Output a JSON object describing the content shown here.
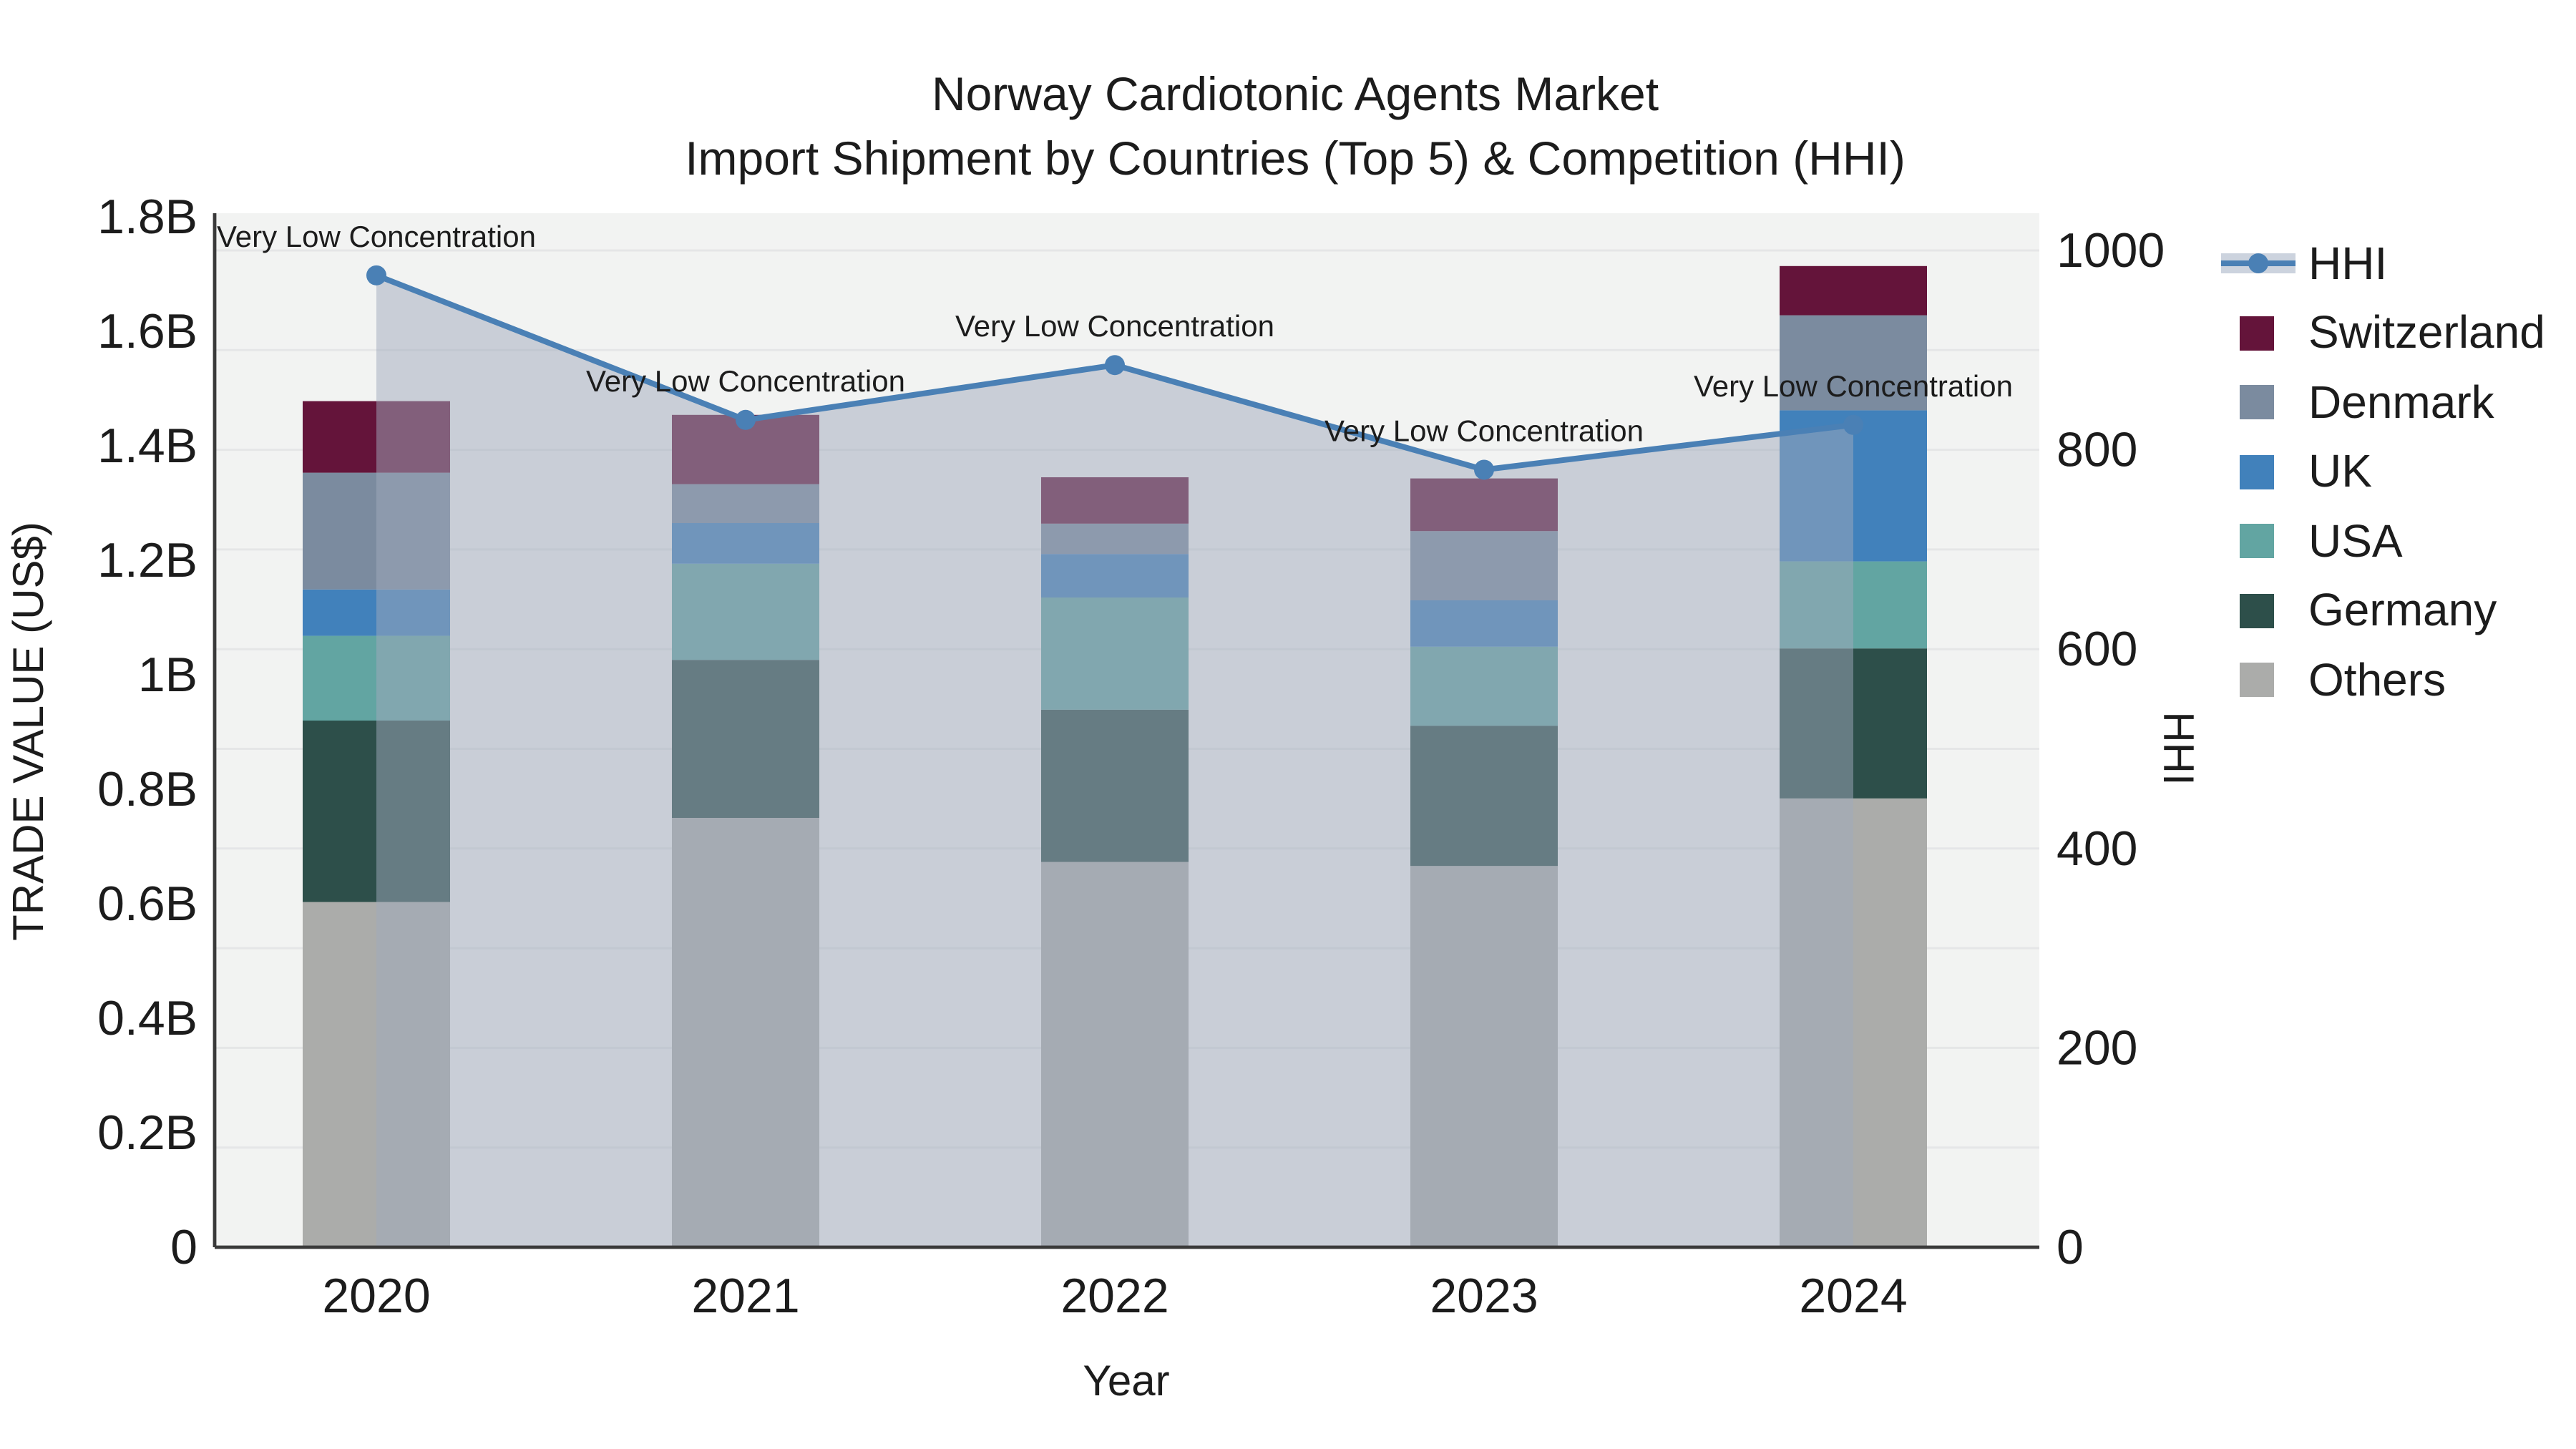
{
  "title": {
    "line1": "Norway Cardiotonic Agents Market",
    "line2": "Import Shipment by Countries (Top 5) & Competition (HHI)"
  },
  "chart_data": {
    "type": "bar+line",
    "title": "Norway Cardiotonic Agents Market — Import Shipment by Countries (Top 5) & Competition (HHI)",
    "categories": [
      "2020",
      "2021",
      "2022",
      "2023",
      "2024"
    ],
    "xlabel": "Year",
    "unit": "USD billions",
    "stack_note": "series listed bottom-to-top of stack",
    "series": [
      {
        "name": "Others",
        "color": "#abacaa",
        "values": [
          0.603,
          0.75,
          0.673,
          0.666,
          0.784
        ]
      },
      {
        "name": "Germany",
        "color": "#2d4f4a",
        "values": [
          0.317,
          0.276,
          0.266,
          0.245,
          0.262
        ]
      },
      {
        "name": "USA",
        "color": "#62a5a2",
        "values": [
          0.148,
          0.168,
          0.196,
          0.138,
          0.152
        ]
      },
      {
        "name": "UK",
        "color": "#4181bb",
        "values": [
          0.081,
          0.071,
          0.076,
          0.081,
          0.264
        ]
      },
      {
        "name": "Denmark",
        "color": "#7b8b9f",
        "values": [
          0.204,
          0.068,
          0.053,
          0.121,
          0.166
        ]
      },
      {
        "name": "Switzerland",
        "color": "#64143a",
        "values": [
          0.125,
          0.121,
          0.081,
          0.092,
          0.086
        ]
      }
    ],
    "totals": [
      1.478,
      1.454,
      1.345,
      1.343,
      1.714
    ],
    "line_series": {
      "name": "HHI",
      "color": "#4a80b5",
      "area_fill": "rgba(160,169,188,0.5)",
      "values": [
        975,
        830,
        885,
        780,
        825
      ]
    },
    "annotation_text": "Very Low Concentration",
    "annotations_per_point": [
      true,
      true,
      true,
      true,
      true
    ],
    "y_left": {
      "title": "TRADE VALUE (US$)",
      "range": [
        0,
        1.8
      ],
      "ticks": [
        [
          0,
          "0"
        ],
        [
          0.2,
          "0.2B"
        ],
        [
          0.4,
          "0.4B"
        ],
        [
          0.6,
          "0.6B"
        ],
        [
          0.8,
          "0.8B"
        ],
        [
          1,
          "1B"
        ],
        [
          1.2,
          "1.2B"
        ],
        [
          1.4,
          "1.4B"
        ],
        [
          1.6,
          "1.6B"
        ],
        [
          1.8,
          "1.8B"
        ]
      ]
    },
    "y_right": {
      "title": "HHI",
      "range": [
        0,
        1000
      ],
      "ticks": [
        [
          0,
          "0"
        ],
        [
          200,
          "200"
        ],
        [
          400,
          "400"
        ],
        [
          600,
          "600"
        ],
        [
          800,
          "800"
        ],
        [
          1000,
          "1000"
        ]
      ],
      "grid_step": 100
    },
    "grid": {
      "color": "#e5e6e7",
      "horizontal": true
    },
    "plot_bg": "#f2f3f2",
    "axis_line_color": "#3a3a3a",
    "text_color": "#1c1c1c",
    "legend": {
      "position": "right",
      "items": [
        {
          "label": "HHI",
          "kind": "line",
          "color": "#4a80b5"
        },
        {
          "label": "Switzerland",
          "kind": "swatch",
          "color": "#64143a"
        },
        {
          "label": "Denmark",
          "kind": "swatch",
          "color": "#7b8b9f"
        },
        {
          "label": "UK",
          "kind": "swatch",
          "color": "#4181bb"
        },
        {
          "label": "USA",
          "kind": "swatch",
          "color": "#62a5a2"
        },
        {
          "label": "Germany",
          "kind": "swatch",
          "color": "#2d4f4a"
        },
        {
          "label": "Others",
          "kind": "swatch",
          "color": "#abacaa"
        }
      ]
    }
  }
}
